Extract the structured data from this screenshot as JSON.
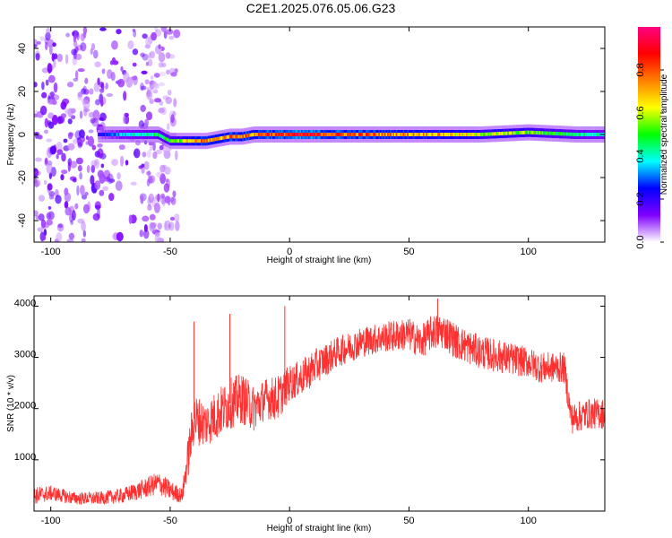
{
  "title": "C2E1.2025.076.05.06.G23",
  "chart_data": [
    {
      "type": "heatmap",
      "xlabel": "Height of straight line (km)",
      "ylabel": "Frequency (Hz)",
      "xlim": [
        -107,
        132
      ],
      "ylim": [
        -50,
        50
      ],
      "x_ticks": [
        -100,
        -50,
        0,
        50,
        100
      ],
      "y_ticks": [
        -40,
        -20,
        0,
        20,
        40
      ],
      "colorbar": {
        "label": "Normalized spectral amplitude",
        "range": [
          0,
          1
        ],
        "ticks": [
          0.0,
          0.2,
          0.4,
          0.6,
          0.8
        ],
        "tick_labels": [
          "0.0",
          "0.2",
          "0.4",
          "0.6",
          "0.8"
        ],
        "colors": [
          "#ffffff",
          "#8000ff",
          "#0000ff",
          "#00ffff",
          "#00ff00",
          "#ffff00",
          "#ff8000",
          "#ff0000",
          "#ff0080"
        ]
      },
      "noise_region_x": [
        -107,
        -47
      ],
      "ridge": {
        "x": [
          -80,
          -75,
          -70,
          -65,
          -60,
          -55,
          -50,
          -45,
          -40,
          -35,
          -30,
          -25,
          -20,
          -15,
          -10,
          -5,
          0,
          10,
          20,
          40,
          60,
          80,
          100,
          120,
          132
        ],
        "freq": [
          0,
          0,
          0,
          0,
          0,
          0,
          -3,
          -3,
          -3,
          -3,
          -2,
          -1,
          -1,
          0,
          0,
          0,
          0,
          0,
          0,
          0,
          0,
          0,
          1,
          0,
          0
        ],
        "amplitude": [
          0.2,
          0.3,
          0.35,
          0.4,
          0.4,
          0.45,
          0.5,
          0.55,
          0.7,
          0.75,
          0.7,
          0.75,
          0.8,
          0.7,
          0.85,
          0.8,
          0.85,
          0.85,
          0.8,
          0.75,
          0.7,
          0.6,
          0.55,
          0.45,
          0.4
        ]
      }
    },
    {
      "type": "line",
      "xlabel": "Height of straight line (km)",
      "ylabel": "SNR (10 * v/v)",
      "xlim": [
        -107,
        132
      ],
      "ylim": [
        0,
        4200
      ],
      "x_ticks": [
        -100,
        -50,
        0,
        50,
        100
      ],
      "y_ticks": [
        1000,
        2000,
        3000,
        4000
      ],
      "series": [
        {
          "color": "#ff3030",
          "x": [
            -107,
            -100,
            -90,
            -80,
            -70,
            -60,
            -55,
            -50,
            -45,
            -42,
            -40,
            -35,
            -30,
            -25,
            -20,
            -15,
            -10,
            -5,
            0,
            5,
            10,
            20,
            30,
            40,
            50,
            55,
            60,
            65,
            70,
            80,
            90,
            100,
            105,
            110,
            115,
            118,
            125,
            132
          ],
          "values": [
            300,
            350,
            250,
            250,
            300,
            450,
            550,
            400,
            300,
            1200,
            1800,
            1700,
            1900,
            2100,
            2200,
            2000,
            2200,
            2200,
            2500,
            2600,
            2800,
            3100,
            3300,
            3400,
            3450,
            3300,
            3500,
            3500,
            3300,
            3100,
            3000,
            2900,
            2800,
            2800,
            2800,
            1800,
            1900,
            1900
          ],
          "spread": [
            350,
            300,
            250,
            250,
            300,
            400,
            450,
            400,
            300,
            900,
            1000,
            900,
            1000,
            1000,
            1000,
            900,
            800,
            900,
            700,
            700,
            700,
            600,
            600,
            600,
            650,
            650,
            700,
            700,
            700,
            650,
            650,
            600,
            600,
            600,
            600,
            600,
            600,
            600
          ],
          "spikes": [
            {
              "x": -40,
              "value": 3700
            },
            {
              "x": -25,
              "value": 3850
            },
            {
              "x": -2,
              "value": 4000
            },
            {
              "x": 62,
              "value": 4150
            }
          ]
        }
      ]
    }
  ]
}
